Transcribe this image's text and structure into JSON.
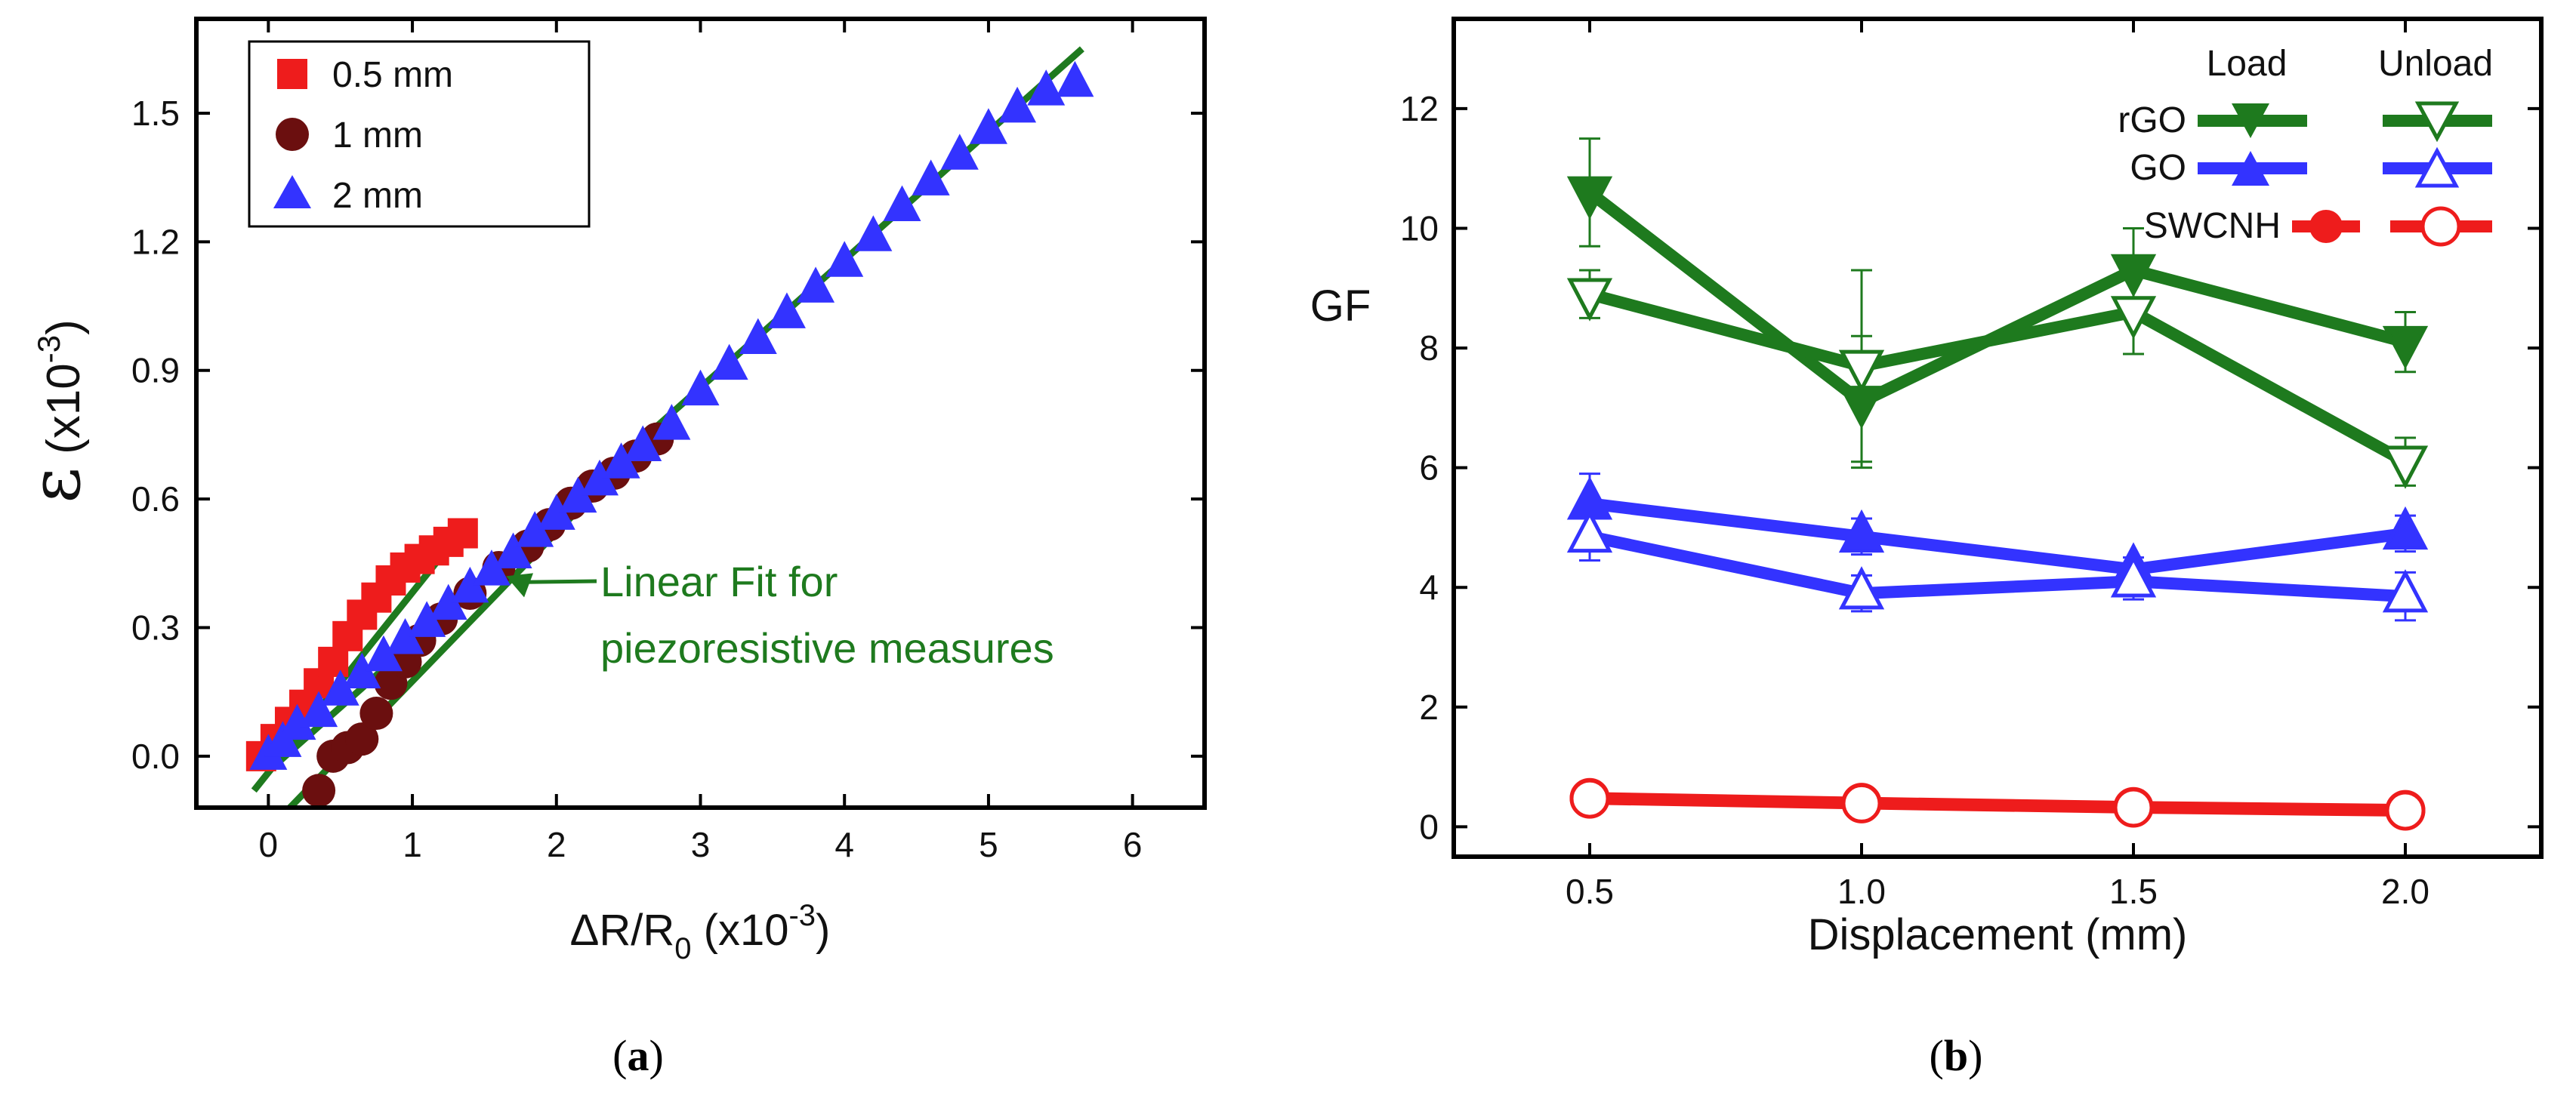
{
  "chart_data": [
    {
      "type": "scatter",
      "panel_label": "a",
      "xlabel": {
        "prefix": "ΔR/R",
        "sub": "0",
        "unit": " (x10",
        "exp": "-3",
        "close": ")"
      },
      "ylabel": {
        "symbol": "ε",
        "unit": " (x10",
        "exp": "-3",
        "close": ")"
      },
      "xlim": [
        -0.5,
        6.5
      ],
      "ylim": [
        -0.12,
        1.72
      ],
      "xticks": [
        0,
        1,
        2,
        3,
        4,
        5,
        6
      ],
      "xtick_labels": [
        "0",
        "1",
        "2",
        "3",
        "4",
        "5",
        "6"
      ],
      "yticks": [
        0.0,
        0.3,
        0.6,
        0.9,
        1.2,
        1.5
      ],
      "ytick_labels": [
        "0.0",
        "0.3",
        "0.6",
        "0.9",
        "1.2",
        "1.5"
      ],
      "legend": {
        "placement": "top-left"
      },
      "series": [
        {
          "name": "0.5 mm",
          "marker": "square",
          "color": "#ee1c1c",
          "points": [
            [
              -0.05,
              0.0
            ],
            [
              0.05,
              0.04
            ],
            [
              0.15,
              0.08
            ],
            [
              0.25,
              0.12
            ],
            [
              0.35,
              0.17
            ],
            [
              0.45,
              0.22
            ],
            [
              0.55,
              0.28
            ],
            [
              0.65,
              0.33
            ],
            [
              0.75,
              0.37
            ],
            [
              0.85,
              0.41
            ],
            [
              0.95,
              0.44
            ],
            [
              1.05,
              0.46
            ],
            [
              1.15,
              0.48
            ],
            [
              1.25,
              0.5
            ],
            [
              1.35,
              0.52
            ]
          ]
        },
        {
          "name": "1 mm",
          "marker": "circle",
          "color": "#6b0f0f",
          "points": [
            [
              0.35,
              -0.08
            ],
            [
              0.45,
              0.0
            ],
            [
              0.55,
              0.02
            ],
            [
              0.65,
              0.04
            ],
            [
              0.75,
              0.1
            ],
            [
              0.85,
              0.17
            ],
            [
              0.95,
              0.22
            ],
            [
              1.05,
              0.27
            ],
            [
              1.2,
              0.32
            ],
            [
              1.4,
              0.38
            ],
            [
              1.6,
              0.44
            ],
            [
              1.8,
              0.49
            ],
            [
              1.95,
              0.54
            ],
            [
              2.1,
              0.59
            ],
            [
              2.25,
              0.63
            ],
            [
              2.4,
              0.66
            ],
            [
              2.55,
              0.7
            ],
            [
              2.7,
              0.74
            ]
          ]
        },
        {
          "name": "2 mm",
          "marker": "triangle-up",
          "color": "#3333ff",
          "points": [
            [
              0.0,
              0.0
            ],
            [
              0.1,
              0.03
            ],
            [
              0.2,
              0.07
            ],
            [
              0.35,
              0.1
            ],
            [
              0.5,
              0.15
            ],
            [
              0.65,
              0.19
            ],
            [
              0.8,
              0.23
            ],
            [
              0.95,
              0.27
            ],
            [
              1.1,
              0.31
            ],
            [
              1.25,
              0.35
            ],
            [
              1.4,
              0.39
            ],
            [
              1.55,
              0.43
            ],
            [
              1.7,
              0.47
            ],
            [
              1.85,
              0.52
            ],
            [
              2.0,
              0.56
            ],
            [
              2.15,
              0.6
            ],
            [
              2.3,
              0.64
            ],
            [
              2.45,
              0.68
            ],
            [
              2.6,
              0.72
            ],
            [
              2.8,
              0.77
            ],
            [
              3.0,
              0.85
            ],
            [
              3.2,
              0.91
            ],
            [
              3.4,
              0.97
            ],
            [
              3.6,
              1.03
            ],
            [
              3.8,
              1.09
            ],
            [
              4.0,
              1.15
            ],
            [
              4.2,
              1.21
            ],
            [
              4.4,
              1.28
            ],
            [
              4.6,
              1.34
            ],
            [
              4.8,
              1.4
            ],
            [
              5.0,
              1.46
            ],
            [
              5.2,
              1.51
            ],
            [
              5.4,
              1.55
            ],
            [
              5.6,
              1.57
            ]
          ]
        }
      ],
      "fit_lines": [
        {
          "name": "fit-0.5mm",
          "x": [
            -0.1,
            1.4
          ],
          "y": [
            -0.08,
            0.55
          ]
        },
        {
          "name": "fit-1mm",
          "x": [
            0.15,
            2.8
          ],
          "y": [
            -0.12,
            0.8
          ]
        },
        {
          "name": "fit-2mm",
          "x": [
            0.05,
            5.65
          ],
          "y": [
            -0.02,
            1.65
          ]
        }
      ],
      "fit_color": "#1e7a1e",
      "annotation": {
        "lines": [
          "Linear Fit for",
          "piezoresistive measures"
        ],
        "color": "#1e7a1e",
        "arrow_to": [
          1.65,
          0.42
        ]
      }
    },
    {
      "type": "line",
      "panel_label": "b",
      "xlabel": "Displacement (mm)",
      "ylabel": "GF",
      "x": [
        0.5,
        1.0,
        1.5,
        2.0
      ],
      "xlim": [
        0.25,
        2.25
      ],
      "ylim": [
        -0.5,
        13.5
      ],
      "xticks": [
        0.5,
        1.0,
        1.5,
        2.0
      ],
      "xtick_labels": [
        "0.5",
        "1.0",
        "1.5",
        "2.0"
      ],
      "yticks": [
        0,
        2,
        4,
        6,
        8,
        10,
        12
      ],
      "ytick_labels": [
        "0",
        "2",
        "4",
        "6",
        "8",
        "10",
        "12"
      ],
      "legend": {
        "placement": "top-right",
        "col_headers": [
          "Load",
          "Unload"
        ]
      },
      "series": [
        {
          "name": "rGO",
          "mode": "Load",
          "marker": "triangle-down-filled",
          "color": "#1e7a1e",
          "values": [
            10.6,
            7.1,
            9.3,
            8.1
          ],
          "err": [
            0.9,
            1.1,
            0.7,
            0.5
          ]
        },
        {
          "name": "rGO",
          "mode": "Unload",
          "marker": "triangle-down-open",
          "color": "#1e7a1e",
          "values": [
            8.9,
            7.7,
            8.6,
            6.1
          ],
          "err": [
            0.4,
            1.6,
            0.7,
            0.4
          ]
        },
        {
          "name": "GO",
          "mode": "Load",
          "marker": "triangle-up-filled",
          "color": "#3333ff",
          "values": [
            5.4,
            4.85,
            4.3,
            4.9
          ],
          "err": [
            0.5,
            0.3,
            0.2,
            0.3
          ]
        },
        {
          "name": "GO",
          "mode": "Unload",
          "marker": "triangle-up-open",
          "color": "#3333ff",
          "values": [
            4.85,
            3.9,
            4.1,
            3.85
          ],
          "err": [
            0.4,
            0.3,
            0.3,
            0.4
          ]
        },
        {
          "name": "SWCNH",
          "mode": "Load",
          "marker": "circle-filled",
          "color": "#ee1c1c",
          "values": [
            0.48,
            0.4,
            0.33,
            0.28
          ],
          "err": [
            0.15,
            0.1,
            0.1,
            0.1
          ]
        },
        {
          "name": "SWCNH",
          "mode": "Unload",
          "marker": "circle-open",
          "color": "#ee1c1c",
          "values": [
            0.47,
            0.39,
            0.32,
            0.27
          ],
          "err": [
            0.15,
            0.1,
            0.1,
            0.1
          ]
        }
      ]
    }
  ]
}
